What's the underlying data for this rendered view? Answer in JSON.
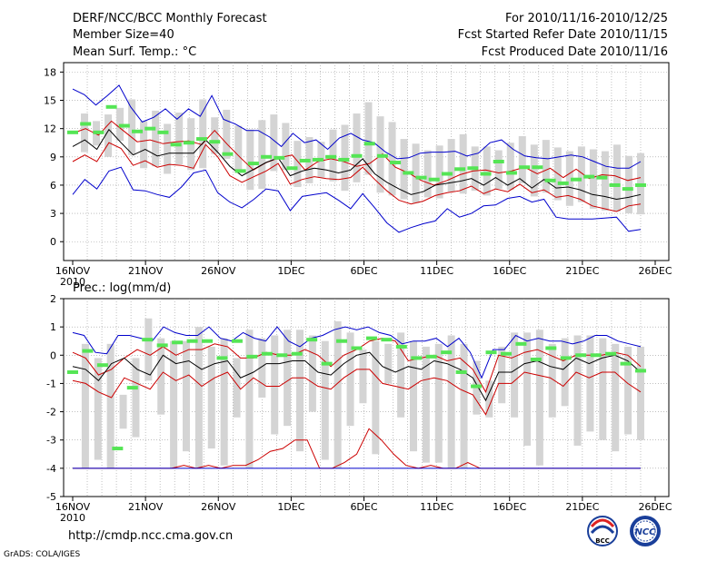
{
  "header": {
    "title": "DERF/NCC/BCC Monthly Forecast",
    "member_size": "Member Size=40",
    "period": "For 2010/11/16-2010/12/25",
    "refer_date": "Fcst Started Refer Date 2010/11/15",
    "produced_date": "Fcst Produced Date 2010/11/16"
  },
  "footer": {
    "url": "http://cmdp.ncc.cma.gov.cn",
    "grads_credit": "GrADS: COLA/IGES",
    "logo_bcc_text": "BCC",
    "logo_ncc_text": "NCC"
  },
  "colors": {
    "max_line": "#0000cc",
    "min_line": "#0000cc",
    "mean_line": "#000000",
    "spread_line": "#cc0000",
    "box": "#d4d4d4",
    "marker": "#55e555",
    "grid": "#999999"
  },
  "chart_data": [
    {
      "type": "box-line",
      "title": "Mean Surf. Temp.: °C",
      "ylim": [
        -2,
        19
      ],
      "yticks": [
        0,
        3,
        6,
        9,
        12,
        15,
        18
      ],
      "xlim": [
        0,
        40
      ],
      "x_tick_positions": [
        0,
        5,
        10,
        15,
        20,
        25,
        30,
        35,
        40
      ],
      "x_tick_labels": [
        "16NOV",
        "21NOV",
        "26NOV",
        "1DEC",
        "6DEC",
        "11DEC",
        "16DEC",
        "21DEC",
        "26DEC"
      ],
      "x_sublabel": "2010",
      "days": 39,
      "series": [
        {
          "name": "max",
          "color": "#0000cc",
          "values": [
            16.2,
            15.6,
            14.5,
            15.5,
            16.6,
            14.3,
            12.7,
            13.2,
            14.1,
            13,
            14.1,
            13.3,
            15.5,
            13,
            12.5,
            11.8,
            11.8,
            11.1,
            10.1,
            11.5,
            10.5,
            10.8,
            9.8,
            11,
            11.5,
            10.8,
            10.5,
            9.5,
            8.8,
            8.9,
            9.4,
            9.5,
            9.5,
            9.6,
            9.1,
            9.4,
            10.5,
            10.8,
            9.8,
            9.1,
            8.9,
            8.8,
            9,
            9.2,
            9,
            8.5,
            8,
            7.8,
            7.8,
            8.5
          ]
        },
        {
          "name": "upper",
          "color": "#cc0000",
          "values": [
            11.5,
            12,
            11.3,
            12.8,
            11.7,
            10.6,
            10.8,
            10.4,
            10.6,
            10.7,
            10.3,
            11.8,
            10.3,
            8.9,
            7.6,
            8.4,
            8.9,
            9.2,
            7.6,
            8.5,
            8.8,
            8.5,
            8,
            8.3,
            9.3,
            7.9,
            7.3,
            6.5,
            6,
            6.5,
            7.1,
            7.5,
            7.6,
            7.3,
            7.5,
            7.9,
            7.2,
            7.8,
            6.8,
            7.7,
            6.7,
            7.1,
            7,
            6.5,
            6.8
          ]
        },
        {
          "name": "mean",
          "color": "#000000",
          "values": [
            10.1,
            10.8,
            9.8,
            11.9,
            10.5,
            9.2,
            9.8,
            9.1,
            9.4,
            9.4,
            9.4,
            10.8,
            9.5,
            8,
            7,
            7.7,
            8.4,
            8.9,
            7,
            7.5,
            7.8,
            7.6,
            7.3,
            7.6,
            8.8,
            7.2,
            6.3,
            5.6,
            5,
            5.3,
            6,
            6.2,
            6.4,
            6.7,
            6,
            6.8,
            6,
            6.7,
            5.7,
            6.6,
            5.7,
            5.8,
            5.5,
            5,
            4.8,
            4.5,
            4.7,
            5
          ]
        },
        {
          "name": "lower",
          "color": "#cc0000",
          "values": [
            8.5,
            9.2,
            8.5,
            10.5,
            9.9,
            8.1,
            8.6,
            7.9,
            8.2,
            8.1,
            7.8,
            10.3,
            9,
            7,
            6.3,
            6.9,
            7.5,
            8.3,
            6.1,
            6.6,
            6.9,
            6.7,
            6.6,
            6.8,
            7.9,
            6.6,
            5.4,
            4.4,
            4,
            4.3,
            4.9,
            5.2,
            5.4,
            5.9,
            5.1,
            5.6,
            5.3,
            6.1,
            5.2,
            5.5,
            4.7,
            4.9,
            4.5,
            3.8,
            3.5,
            3.2,
            3.8,
            4
          ]
        },
        {
          "name": "min",
          "color": "#0000cc",
          "values": [
            5,
            6.6,
            5.6,
            7.5,
            7.9,
            5.5,
            5.4,
            5,
            4.7,
            5.8,
            7.3,
            7.6,
            5.2,
            4.2,
            3.6,
            4.5,
            5.6,
            5.4,
            3.3,
            4.8,
            5,
            5.2,
            4.4,
            3.5,
            5.1,
            3.6,
            2,
            1,
            1.5,
            1.9,
            2.2,
            3.5,
            2.6,
            3,
            3.8,
            3.9,
            4.6,
            4.8,
            4.2,
            4.5,
            2.6,
            2.4,
            2.4,
            2.4,
            2.5,
            2.6,
            1.1,
            1.3
          ]
        }
      ],
      "boxes": {
        "low": [
          9.5,
          10.2,
          9,
          10.7,
          9.2,
          7.8,
          8,
          7.2,
          8.2,
          7.6,
          7.8,
          9.3,
          8.8,
          7.3,
          5.5,
          5.6,
          7.5,
          7.6,
          5.8,
          6.2,
          6.8,
          6.4,
          5.4,
          6.3,
          7.1,
          5.2,
          4.9,
          4.5,
          4.1,
          4.7,
          4.6,
          5.3,
          5.1,
          5.4,
          4.9,
          5.6,
          5.5,
          6.2,
          4.8,
          5.2,
          4.4,
          3.8,
          4.2,
          3.5,
          3.3,
          3.2,
          3,
          2.9
        ],
        "high": [
          13.6,
          12.8,
          13.5,
          14.2,
          15.1,
          12.8,
          13.9,
          12.5,
          13.7,
          13.1,
          15.1,
          13.2,
          14,
          12.3,
          11.9,
          12.9,
          13.5,
          12.6,
          10.7,
          11.1,
          10.6,
          11.9,
          12.4,
          13.6,
          14.8,
          13.3,
          12.7,
          10.9,
          10.4,
          9.7,
          10.2,
          10.9,
          11.4,
          10.1,
          10.1,
          9.7,
          10.5,
          11.2,
          10.3,
          10.8,
          10,
          9.6,
          10.1,
          9.8,
          9.6,
          10.3,
          9.1,
          9.4
        ]
      },
      "markers": [
        11.6,
        12.5,
        11.6,
        14.3,
        12.3,
        11.7,
        12,
        11.6,
        10.3,
        10.5,
        10.9,
        10.6,
        9.3,
        7.5,
        8.3,
        9,
        8.9,
        7.8,
        8.6,
        8.7,
        9,
        8.7,
        9.1,
        10.4,
        9.1,
        8.4,
        7.3,
        6.8,
        6.6,
        7.2,
        7.7,
        7.8,
        7.2,
        8.5,
        7.3,
        7.9,
        7.9,
        6.5,
        6.2,
        6.6,
        6.9,
        6.8,
        6,
        5.6,
        6
      ]
    },
    {
      "type": "box-line",
      "title": "Prec.: log(mm/d)",
      "ylim": [
        -5,
        2
      ],
      "yticks": [
        -5,
        -4,
        -3,
        -2,
        -1,
        0,
        1,
        2
      ],
      "xlim": [
        0,
        40
      ],
      "x_tick_positions": [
        0,
        5,
        10,
        15,
        20,
        25,
        30,
        35,
        40
      ],
      "x_tick_labels": [
        "16NOV",
        "21NOV",
        "26NOV",
        "1DEC",
        "6DEC",
        "11DEC",
        "16DEC",
        "21DEC",
        "26DEC"
      ],
      "x_sublabel": "2010",
      "days": 39,
      "series": [
        {
          "name": "max",
          "color": "#0000cc",
          "values": [
            0.8,
            0.7,
            0.1,
            0.05,
            0.7,
            0.7,
            0.6,
            0.5,
            1,
            0.8,
            0.7,
            0.7,
            1,
            0.6,
            0.5,
            0.8,
            0.6,
            0.5,
            1,
            0.5,
            0.3,
            0.6,
            0.7,
            0.9,
            1,
            0.9,
            1,
            0.8,
            0.7,
            0.4,
            0.5,
            0.5,
            0.6,
            0.3,
            0.6,
            0.1,
            -0.8,
            0.2,
            0.2,
            0.7,
            0.5,
            0.6,
            0.5,
            0.5,
            0.4,
            0.5,
            0.7,
            0.7,
            0.5,
            0.4,
            0.3
          ]
        },
        {
          "name": "upper",
          "color": "#cc0000",
          "values": [
            0.1,
            -0.1,
            -0.7,
            -0.5,
            -0.1,
            0.2,
            0,
            0.3,
            0,
            0.2,
            0.2,
            0.4,
            0.3,
            -0.1,
            -0.1,
            0.1,
            0,
            0,
            0.2,
            0,
            -0.4,
            0,
            0.2,
            0.5,
            0.6,
            0.5,
            -0.2,
            -0.1,
            0,
            -0.2,
            -0.1,
            -0.5,
            -1.3,
            0,
            -0.1,
            0.1,
            0.2,
            0,
            -0.2,
            0,
            0,
            0,
            0.1,
            0,
            -0.4
          ]
        },
        {
          "name": "mean",
          "color": "#000000",
          "values": [
            -0.4,
            -0.5,
            -0.9,
            -0.3,
            -0.1,
            -0.5,
            -0.7,
            0,
            -0.3,
            -0.2,
            -0.5,
            -0.3,
            -0.2,
            -0.8,
            -0.6,
            -0.3,
            -0.3,
            -0.2,
            -0.2,
            -0.6,
            -0.7,
            -0.3,
            0,
            0.1,
            -0.4,
            -0.6,
            -0.4,
            -0.5,
            -0.2,
            -0.3,
            -0.5,
            -0.8,
            -1.6,
            -0.6,
            -0.6,
            -0.3,
            -0.2,
            -0.4,
            -0.5,
            -0.1,
            -0.3,
            -0.1,
            0,
            -0.2,
            -0.6
          ]
        },
        {
          "name": "lower",
          "color": "#cc0000",
          "values": [
            -0.9,
            -1,
            -1.3,
            -1.5,
            -0.8,
            -1,
            -1.2,
            -0.6,
            -0.9,
            -0.7,
            -1.1,
            -0.8,
            -0.6,
            -1.2,
            -0.8,
            -1.1,
            -1.1,
            -0.8,
            -0.8,
            -1.1,
            -1.2,
            -0.8,
            -0.5,
            -0.5,
            -1,
            -1.1,
            -1.2,
            -0.9,
            -0.8,
            -0.9,
            -1.2,
            -1.4,
            -2.1,
            -1,
            -1,
            -0.6,
            -0.7,
            -0.8,
            -1.1,
            -0.6,
            -0.8,
            -0.6,
            -0.6,
            -1,
            -1.3
          ]
        },
        {
          "name": "min-spread",
          "color": "#cc0000",
          "values": [
            -4,
            -4,
            -4,
            -4,
            -4,
            -4,
            -4,
            -4,
            -4,
            -3.9,
            -4,
            -3.9,
            -4,
            -3.9,
            -3.9,
            -3.7,
            -3.4,
            -3.3,
            -3,
            -3,
            -4,
            -4,
            -3.8,
            -3.5,
            -2.6,
            -3,
            -3.5,
            -3.9,
            -4,
            -3.9,
            -4,
            -4,
            -3.8,
            -4,
            -4,
            -4,
            -4,
            -4,
            -4,
            -4,
            -4,
            -4,
            -4,
            -4,
            -4,
            -4,
            -4
          ]
        },
        {
          "name": "min",
          "color": "#0000cc",
          "values": [
            -4,
            -4,
            -4,
            -4,
            -4,
            -4,
            -4,
            -4,
            -4,
            -4,
            -4,
            -4,
            -4,
            -4,
            -4,
            -4,
            -4,
            -4,
            -4,
            -4,
            -4,
            -4,
            -4,
            -4,
            -4,
            -4,
            -4,
            -4,
            -4,
            -4,
            -4,
            -4,
            -4,
            -4,
            -4,
            -4,
            -4,
            -4,
            -4,
            -4,
            -4,
            -4,
            -4,
            -4,
            -4,
            -4,
            -4
          ]
        }
      ],
      "boxes": {
        "low": [
          -4,
          -3.7,
          -4,
          -2.6,
          -2.9,
          -0.9,
          -2.1,
          -4,
          -3.4,
          -4,
          -3.3,
          -3.9,
          -2.2,
          -4,
          -1.5,
          -2.8,
          -2.5,
          -3.4,
          -2,
          -3.7,
          -4,
          -2.5,
          -1.7,
          -3.5,
          -1,
          -2.2,
          -3.4,
          -3.8,
          -3.8,
          -4,
          -4,
          -2.1,
          -2.2,
          -1.7,
          -2.2,
          -3.2,
          -3.9,
          -2.2,
          -1.8,
          -3.2,
          -2.7,
          -3,
          -3.4,
          -2.8,
          -3
        ],
        "high": [
          0.4,
          -0.1,
          0.4,
          -1.4,
          -0.1,
          1.3,
          0.6,
          0.5,
          0.5,
          1,
          0.3,
          0.6,
          -0.1,
          0.9,
          0.6,
          0.7,
          0.9,
          0.9,
          0.7,
          0.5,
          1.2,
          0.8,
          0.2,
          0.5,
          0.4,
          0.8,
          0.5,
          0.3,
          0.4,
          0.7,
          0.4,
          -0.2,
          -0.9,
          0.3,
          0.8,
          0.8,
          0.9,
          0.4,
          0.6,
          0.7,
          0.7,
          0.6,
          0.4,
          0.3,
          0.3
        ]
      },
      "markers": [
        -0.6,
        0.15,
        -0.35,
        -3.3,
        -1.15,
        0.55,
        0.35,
        0.45,
        0.5,
        0.5,
        -0.1,
        0.5,
        -0.05,
        0.05,
        0,
        0.05,
        0.55,
        -0.3,
        0.5,
        0.25,
        0.6,
        0.55,
        0.3,
        -0.1,
        -0.05,
        0.1,
        -0.6,
        -1.1,
        0.1,
        0.05,
        0.4,
        -0.15,
        0.25,
        -0.1,
        0,
        0,
        0.05,
        -0.3,
        -0.55
      ]
    }
  ]
}
